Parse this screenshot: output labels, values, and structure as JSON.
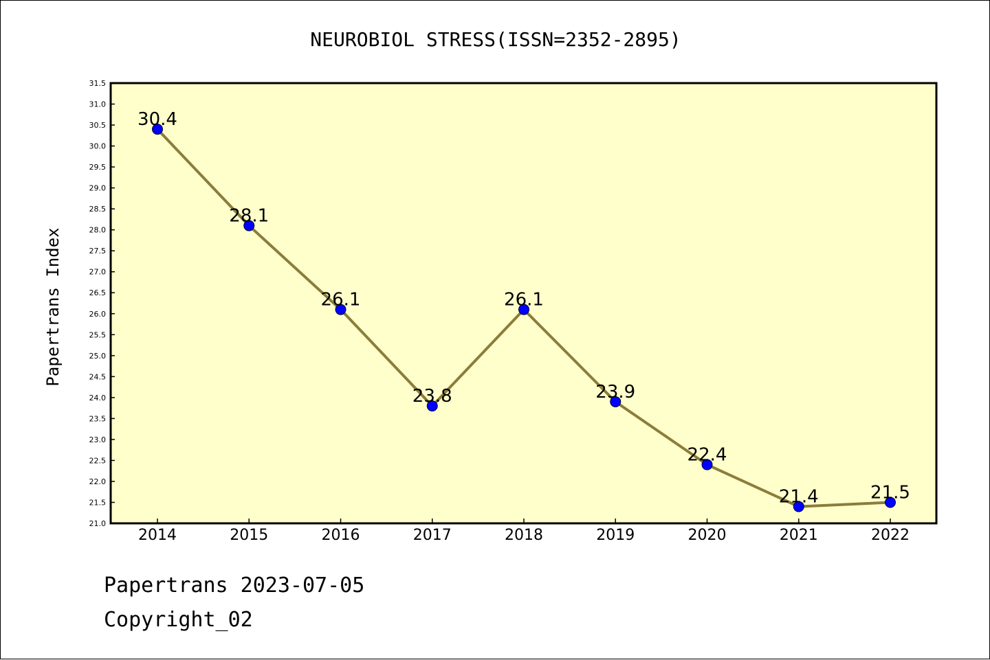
{
  "chart_data": {
    "type": "line",
    "title": "NEUROBIOL STRESS(ISSN=2352-2895)",
    "xlabel": "",
    "ylabel": "Papertrans Index",
    "categories": [
      "2014",
      "2015",
      "2016",
      "2017",
      "2018",
      "2019",
      "2020",
      "2021",
      "2022"
    ],
    "values": [
      30.4,
      28.1,
      26.1,
      23.8,
      26.1,
      23.9,
      22.4,
      21.4,
      21.5
    ],
    "data_labels": [
      "30.4",
      "28.1",
      "26.1",
      "23.8",
      "26.1",
      "23.9",
      "22.4",
      "21.4",
      "21.5"
    ],
    "ylim": [
      21.0,
      31.5
    ],
    "ytick_step": 0.5,
    "grid": false,
    "legend": "none",
    "colors": {
      "plot_background": "#ffffcc",
      "line": "#8b7d3a",
      "marker": "#0000ff",
      "axis": "#000000"
    }
  },
  "footer": {
    "line1": "Papertrans 2023-07-05",
    "line2": "Copyright_02"
  }
}
